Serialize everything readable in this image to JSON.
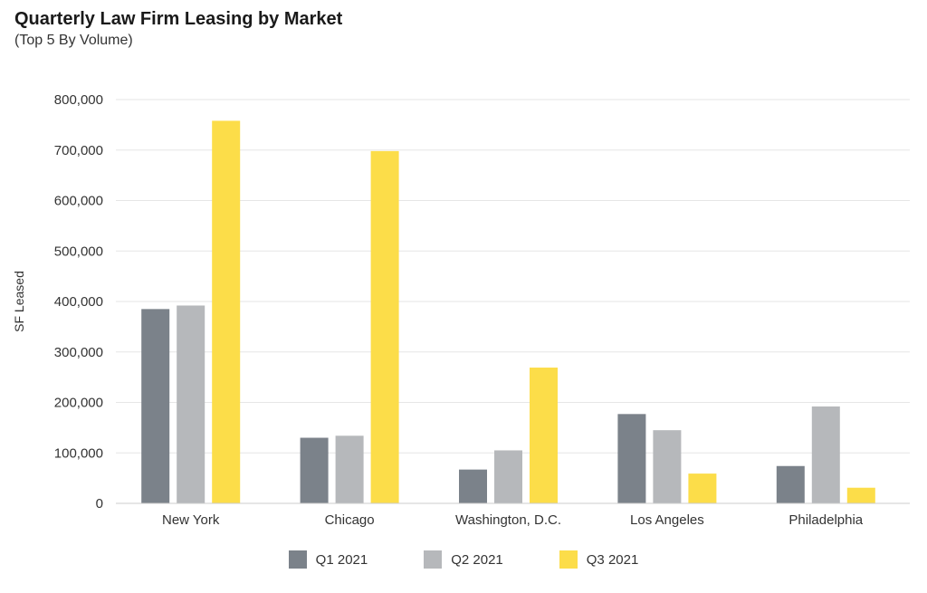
{
  "chart_data": {
    "type": "bar",
    "title": "Quarterly Law Firm Leasing by Market",
    "subtitle": "(Top 5 By Volume)",
    "ylabel": "SF Leased",
    "xlabel": "",
    "categories": [
      "New York",
      "Chicago",
      "Washington, D.C.",
      "Los Angeles",
      "Philadelphia"
    ],
    "series": [
      {
        "name": "Q1 2021",
        "color": "#7b828a",
        "values": [
          385000,
          130000,
          67000,
          177000,
          74000
        ]
      },
      {
        "name": "Q2 2021",
        "color": "#b6b8bb",
        "values": [
          392000,
          134000,
          105000,
          145000,
          192000
        ]
      },
      {
        "name": "Q3 2021",
        "color": "#fcdd49",
        "values": [
          758000,
          698000,
          269000,
          59000,
          31000
        ]
      }
    ],
    "ylim": [
      0,
      800000
    ],
    "yticks": [
      0,
      100000,
      200000,
      300000,
      400000,
      500000,
      600000,
      700000,
      800000
    ],
    "ytick_labels": [
      "0",
      "100,000",
      "200,000",
      "300,000",
      "400,000",
      "500,000",
      "600,000",
      "700,000",
      "800,000"
    ],
    "grid": true,
    "legend_position": "bottom"
  }
}
